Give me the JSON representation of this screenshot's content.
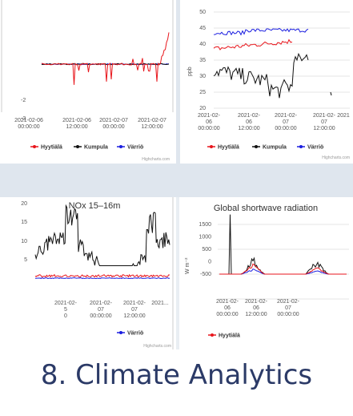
{
  "caption": "8. Climate Analytics",
  "colors": {
    "hyytiala": "#e8161c",
    "kumpula": "#111111",
    "varrio": "#1b1ee0",
    "grid": "#e6e6e6",
    "bg_band": "#dfe6ee"
  },
  "chart_data": [
    {
      "id": "top-left",
      "type": "line",
      "title": "",
      "ylabel": "",
      "y_ticks": [
        "-2",
        "-3"
      ],
      "x_ticks": [
        [
          "2021-02-06",
          "00:00:00"
        ],
        [
          "2021-02-06",
          "12:00:00"
        ],
        [
          "2021-02-07",
          "00:00:00"
        ],
        [
          "2021-02-07",
          "12:00:00"
        ]
      ],
      "legend": [
        "Hyytiälä",
        "Kumpula",
        "Värriö"
      ],
      "credit": "Highcharts.com",
      "series": [
        {
          "name": "Hyytiälä",
          "color": "#e8161c"
        },
        {
          "name": "Kumpula",
          "color": "#111111"
        },
        {
          "name": "Värriö",
          "color": "#1b1ee0"
        }
      ]
    },
    {
      "id": "top-right",
      "type": "line",
      "title": "",
      "ylabel": "ppb",
      "ylim": [
        20,
        50
      ],
      "y_ticks": [
        "50",
        "45",
        "40",
        "35",
        "30",
        "25",
        "20"
      ],
      "x_ticks": [
        [
          "2021-02-",
          "06",
          "00:00:00"
        ],
        [
          "2021-02-",
          "06",
          "12:00:00"
        ],
        [
          "2021-02-",
          "07",
          "00:00:00"
        ],
        [
          "2021-02-",
          "07",
          "12:00:00"
        ],
        [
          "2021",
          "",
          ""
        ]
      ],
      "legend": [
        "Hyytiälä",
        "Kumpula",
        "Värriö"
      ],
      "credit": "Highcharts.com"
    },
    {
      "id": "bottom-left",
      "type": "line",
      "title": "NOx 15–16m",
      "ylabel": "",
      "ylim": [
        0,
        20
      ],
      "y_ticks": [
        "20",
        "15",
        "10",
        "5"
      ],
      "x_ticks": [
        [
          "2021-02-",
          "5",
          "0"
        ],
        [
          "2021-02-",
          "07",
          "00:00:00"
        ],
        [
          "2021-02-",
          "07",
          "12:00:00"
        ],
        [
          "2021...",
          "",
          ""
        ]
      ],
      "legend": [
        "Värriö"
      ],
      "credit": "Highcharts.com"
    },
    {
      "id": "bottom-right",
      "type": "line",
      "title": "Global shortwave radiation",
      "ylabel": "W m⁻²",
      "ylim": [
        -500,
        1500
      ],
      "y_ticks": [
        "1500",
        "1000",
        "500",
        "0",
        "-500"
      ],
      "x_ticks": [
        [
          "2021-02-",
          "06",
          "00:00:00"
        ],
        [
          "2021-02-",
          "06",
          "12:00:00"
        ],
        [
          "2021-02-",
          "07",
          "00:00:00"
        ],
        [
          "",
          "",
          ""
        ]
      ],
      "legend": [
        "Hyytiälä"
      ]
    }
  ]
}
